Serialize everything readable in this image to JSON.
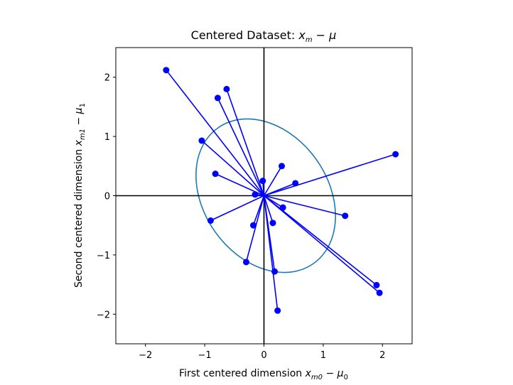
{
  "chart_data": {
    "type": "scatter",
    "title": {
      "main": "Centered Dataset: ",
      "x_symbol": "x",
      "sub_m": "m",
      "minus": " − ",
      "mu_symbol": "μ"
    },
    "xlabel": {
      "main": "First centered dimension ",
      "x": "x",
      "x_sub": "m0",
      "minus": " − ",
      "mu": "μ",
      "mu_sub": "0"
    },
    "ylabel": {
      "main": "Second centered dimension ",
      "x": "x",
      "x_sub": "m1",
      "minus": " − ",
      "mu": "μ",
      "mu_sub": "1"
    },
    "xlim": [
      -2.5,
      2.5
    ],
    "ylim": [
      -2.5,
      2.5
    ],
    "xticks": [
      -2,
      -1,
      0,
      1,
      2
    ],
    "yticks": [
      -2,
      -1,
      0,
      1,
      2
    ],
    "xtick_labels": [
      "−2",
      "−1",
      "0",
      "1",
      "2"
    ],
    "ytick_labels": [
      "−2",
      "−1",
      "0",
      "1",
      "2"
    ],
    "grid": false,
    "origin_axes": true,
    "series": [
      {
        "points": [
          [
            -1.65,
            2.12
          ],
          [
            -0.78,
            1.65
          ],
          [
            -0.63,
            1.8
          ],
          [
            -1.05,
            0.93
          ],
          [
            -0.82,
            0.37
          ],
          [
            -0.02,
            0.25
          ],
          [
            0.3,
            0.5
          ],
          [
            0.53,
            0.21
          ],
          [
            2.22,
            0.7
          ],
          [
            -0.15,
            0.02
          ],
          [
            0.32,
            -0.2
          ],
          [
            1.37,
            -0.34
          ],
          [
            -0.9,
            -0.42
          ],
          [
            -0.18,
            -0.5
          ],
          [
            0.15,
            -0.46
          ],
          [
            -0.3,
            -1.12
          ],
          [
            0.18,
            -1.28
          ],
          [
            0.23,
            -1.94
          ],
          [
            1.9,
            -1.51
          ],
          [
            1.95,
            -1.64
          ]
        ],
        "color": "#0000ff",
        "marker": "circle",
        "draw_lines_from_origin": true
      }
    ],
    "ellipse": {
      "center": [
        0.03,
        0.0
      ],
      "semi_axis_a": 1.4,
      "semi_axis_b": 1.05,
      "angle_deg": -55,
      "color": "#1f77b4"
    }
  }
}
